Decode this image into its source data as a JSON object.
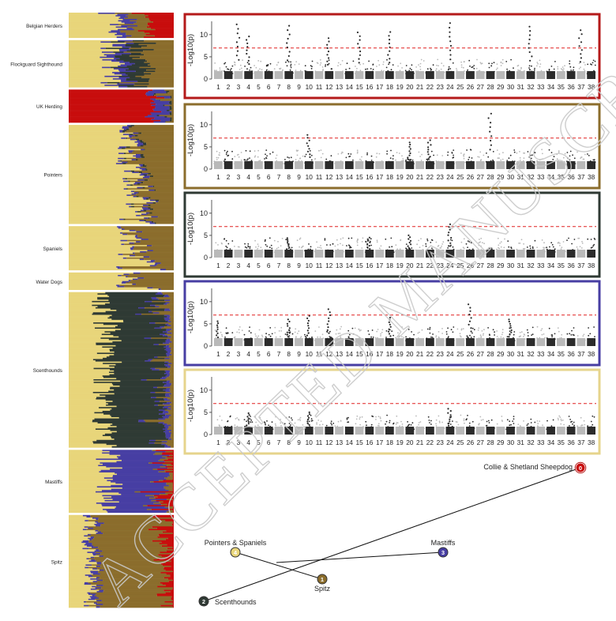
{
  "colors": {
    "k1": "#e8d57a",
    "k2": "#473ea3",
    "k3": "#8b6d2c",
    "k4": "#2f3a34",
    "k5": "#c80d0d",
    "border_red": "#b41a1a",
    "border_brown": "#8b6d2c",
    "border_dark": "#2f3a34",
    "border_blue": "#473ea3",
    "border_yellow": "#e6d48c",
    "dot_light": "#b9b9b9",
    "dot_dark": "#2b2b2b",
    "threshold": "#e02020"
  },
  "structure_plot": {
    "groups": [
      {
        "label": "Belgian Herders",
        "weight": 32,
        "comp": [
          "k1",
          "k2",
          "k3",
          "k5"
        ]
      },
      {
        "label": "Flockguard Sighthound",
        "weight": 60,
        "comp": [
          "k1",
          "k2",
          "k4",
          "k3"
        ]
      },
      {
        "label": "UK Herding",
        "weight": 42,
        "comp": [
          "k5",
          "k2",
          "k4",
          "k3"
        ]
      },
      {
        "label": "Pointers",
        "weight": 126,
        "comp": [
          "k1",
          "k2",
          "k4",
          "k3"
        ]
      },
      {
        "label": "Spaniels",
        "weight": 56,
        "comp": [
          "k1",
          "k2",
          "k3"
        ]
      },
      {
        "label": "Water Dogs",
        "weight": 22,
        "comp": [
          "k1",
          "k2",
          "k3"
        ]
      },
      {
        "label": "Scenthounds",
        "weight": 198,
        "comp": [
          "k1",
          "k4",
          "k2",
          "k3"
        ]
      },
      {
        "label": "Mastiffs",
        "weight": 80,
        "comp": [
          "k1",
          "k2",
          "k3",
          "k5"
        ]
      },
      {
        "label": "Spitz",
        "weight": 118,
        "comp": [
          "k1",
          "k2",
          "k3",
          "k5"
        ]
      }
    ]
  },
  "chart_data": [
    {
      "type": "scatter",
      "ylabel": "-Log10(p)",
      "yticks": [
        "0",
        "5",
        "10"
      ],
      "ylim": [
        0,
        13
      ],
      "threshold": 7,
      "x_categories": [
        "1",
        "2",
        "3",
        "4",
        "5",
        "6",
        "7",
        "8",
        "9",
        "10",
        "11",
        "12",
        "13",
        "14",
        "15",
        "16",
        "17",
        "18",
        "19",
        "20",
        "21",
        "22",
        "23",
        "24",
        "25",
        "26",
        "27",
        "28",
        "29",
        "30",
        "31",
        "32",
        "33",
        "34",
        "35",
        "36",
        "37",
        "38"
      ],
      "border": "border_red",
      "peaks": [
        {
          "chr": "3",
          "y": 12.3
        },
        {
          "chr": "4",
          "y": 9.6
        },
        {
          "chr": "8",
          "y": 12
        },
        {
          "chr": "12",
          "y": 9.2
        },
        {
          "chr": "15",
          "y": 10.5
        },
        {
          "chr": "18",
          "y": 10.6
        },
        {
          "chr": "24",
          "y": 12.6
        },
        {
          "chr": "32",
          "y": 11.8
        },
        {
          "chr": "37",
          "y": 11
        }
      ]
    },
    {
      "type": "scatter",
      "ylabel": "-Log10(p)",
      "yticks": [
        "0",
        "5",
        "10"
      ],
      "ylim": [
        0,
        13
      ],
      "threshold": 7,
      "x_categories": [
        "1",
        "2",
        "3",
        "4",
        "5",
        "6",
        "7",
        "8",
        "9",
        "10",
        "11",
        "12",
        "13",
        "14",
        "15",
        "16",
        "17",
        "18",
        "19",
        "20",
        "21",
        "22",
        "23",
        "24",
        "25",
        "26",
        "27",
        "28",
        "29",
        "30",
        "31",
        "32",
        "33",
        "34",
        "35",
        "36",
        "37",
        "38"
      ],
      "border": "border_brown",
      "peaks": [
        {
          "chr": "10",
          "y": 7.7
        },
        {
          "chr": "20",
          "y": 6
        },
        {
          "chr": "22",
          "y": 6.5
        },
        {
          "chr": "28",
          "y": 12.5
        }
      ]
    },
    {
      "type": "scatter",
      "ylabel": "-Log10(p)",
      "yticks": [
        "0",
        "5",
        "10"
      ],
      "ylim": [
        0,
        13
      ],
      "threshold": 7,
      "x_categories": [
        "1",
        "2",
        "3",
        "4",
        "5",
        "6",
        "7",
        "8",
        "9",
        "10",
        "11",
        "12",
        "13",
        "14",
        "15",
        "16",
        "17",
        "18",
        "19",
        "20",
        "21",
        "22",
        "23",
        "24",
        "25",
        "26",
        "27",
        "28",
        "29",
        "30",
        "31",
        "32",
        "33",
        "34",
        "35",
        "36",
        "37",
        "38"
      ],
      "border": "border_dark",
      "peaks": [
        {
          "chr": "8",
          "y": 4.4
        },
        {
          "chr": "16",
          "y": 4.5
        },
        {
          "chr": "20",
          "y": 5
        },
        {
          "chr": "24",
          "y": 7.5
        }
      ]
    },
    {
      "type": "scatter",
      "ylabel": "-Log10(p)",
      "yticks": [
        "0",
        "5",
        "10"
      ],
      "ylim": [
        0,
        13
      ],
      "threshold": 7,
      "x_categories": [
        "1",
        "2",
        "3",
        "4",
        "5",
        "6",
        "7",
        "8",
        "9",
        "10",
        "11",
        "12",
        "13",
        "14",
        "15",
        "16",
        "17",
        "18",
        "19",
        "20",
        "21",
        "22",
        "23",
        "24",
        "25",
        "26",
        "27",
        "28",
        "29",
        "30",
        "31",
        "32",
        "33",
        "34",
        "35",
        "36",
        "37",
        "38"
      ],
      "border": "border_blue",
      "peaks": [
        {
          "chr": "1",
          "y": 5.6
        },
        {
          "chr": "8",
          "y": 6
        },
        {
          "chr": "10",
          "y": 6.8
        },
        {
          "chr": "12",
          "y": 8.3
        },
        {
          "chr": "18",
          "y": 6.4
        },
        {
          "chr": "26",
          "y": 9.4
        },
        {
          "chr": "30",
          "y": 6
        }
      ]
    },
    {
      "type": "scatter",
      "ylabel": "-Log10(p)",
      "yticks": [
        "0",
        "5",
        "10"
      ],
      "ylim": [
        0,
        13
      ],
      "threshold": 7,
      "x_categories": [
        "1",
        "2",
        "3",
        "4",
        "5",
        "6",
        "7",
        "8",
        "9",
        "10",
        "11",
        "12",
        "13",
        "14",
        "15",
        "16",
        "17",
        "18",
        "19",
        "20",
        "21",
        "22",
        "23",
        "24",
        "25",
        "26",
        "27",
        "28",
        "29",
        "30",
        "31",
        "32",
        "33",
        "34",
        "35",
        "36",
        "37",
        "38"
      ],
      "border": "border_yellow",
      "peaks": [
        {
          "chr": "4",
          "y": 4.8
        },
        {
          "chr": "10",
          "y": 5
        },
        {
          "chr": "24",
          "y": 5.8
        }
      ]
    }
  ],
  "tree": {
    "nodes": [
      {
        "id": "0",
        "label": "Collie & Shetland Sheepdog",
        "color": "k5"
      },
      {
        "id": "1",
        "label": "Spitz",
        "color": "k3"
      },
      {
        "id": "2",
        "label": "Scenthounds",
        "color": "k4"
      },
      {
        "id": "3",
        "label": "Mastiffs",
        "color": "k2"
      },
      {
        "id": "4",
        "label": "Pointers & Spaniels",
        "color": "k1"
      }
    ]
  },
  "watermark": "ACCEPTED MANUSCRIPT"
}
